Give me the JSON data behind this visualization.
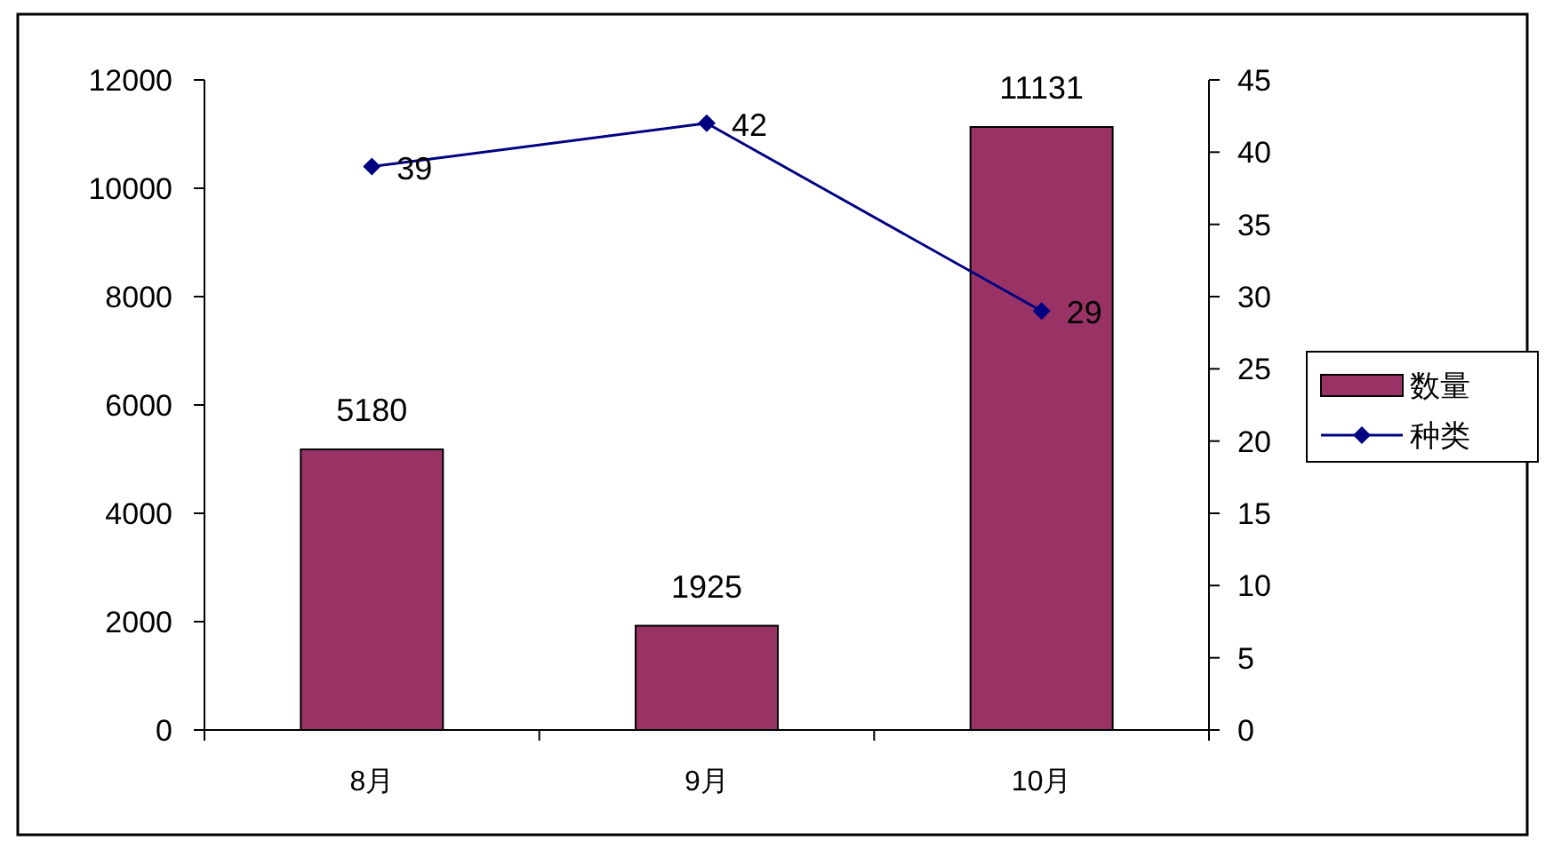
{
  "chart_data": {
    "type": "bar",
    "categories": [
      "8月",
      "9月",
      "10月"
    ],
    "series": [
      {
        "name": "数量",
        "color": "#993366",
        "values": [
          5180,
          1925,
          11131
        ]
      },
      {
        "name": "种类",
        "type": "line",
        "axis": "y2",
        "color": "#000080",
        "marker": "diamond",
        "values": [
          39,
          42,
          29
        ]
      }
    ],
    "ylim": [
      0,
      12000
    ],
    "yticks": [
      0,
      2000,
      4000,
      6000,
      8000,
      10000,
      12000
    ],
    "y2lim": [
      0,
      45
    ],
    "y2ticks": [
      0,
      5,
      10,
      15,
      20,
      25,
      30,
      35,
      40,
      45
    ],
    "data_labels": true,
    "legend": "right"
  }
}
